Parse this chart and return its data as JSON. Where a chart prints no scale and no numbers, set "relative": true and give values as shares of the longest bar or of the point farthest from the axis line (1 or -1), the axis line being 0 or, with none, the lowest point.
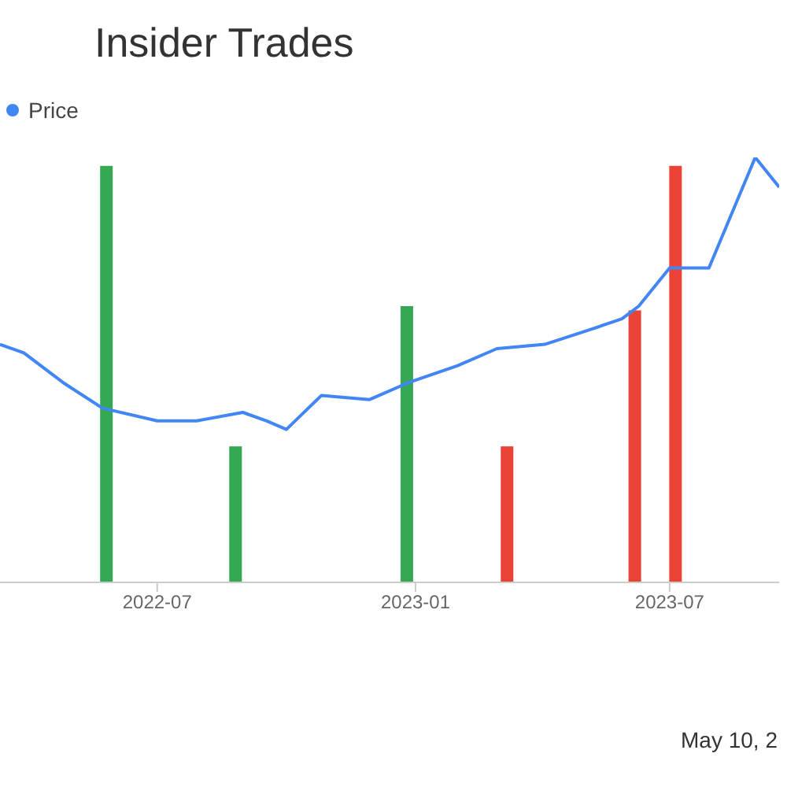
{
  "chart_data": {
    "type": "bar",
    "title": "Insider Trades",
    "relative": true,
    "legend": "top left",
    "xlim": [
      "2022-03-11",
      "2023-09-17"
    ],
    "xticks": [
      "2022-07",
      "2023-01",
      "2023-07"
    ],
    "series": [
      {
        "color": "#34a853",
        "x": [
          "2022-05-26",
          "2022-08-26",
          "2022-12-26"
        ],
        "values": [
          0.98,
          0.32,
          0.65
        ]
      },
      {
        "color": "#ea4335",
        "x": [
          "2023-03-07",
          "2023-06-06",
          "2023-07-05"
        ],
        "values": [
          0.32,
          0.64,
          0.98
        ]
      },
      {
        "type": "line",
        "name": "Price",
        "color": "#4285f4",
        "x": [
          "2022-03-11",
          "2022-03-28",
          "2022-04-25",
          "2022-05-23",
          "2022-07-01",
          "2022-07-29",
          "2022-08-31",
          "2022-09-17",
          "2022-10-01",
          "2022-10-26",
          "2022-11-29",
          "2022-12-27",
          "2023-01-31",
          "2023-02-28",
          "2023-04-03",
          "2023-05-01",
          "2023-05-28",
          "2023-06-09",
          "2023-07-01",
          "2023-07-29",
          "2023-08-31",
          "2023-09-17"
        ],
        "values": [
          0.56,
          0.54,
          0.47,
          0.41,
          0.38,
          0.38,
          0.4,
          0.38,
          0.36,
          0.44,
          0.43,
          0.47,
          0.51,
          0.55,
          0.56,
          0.59,
          0.62,
          0.65,
          0.74,
          0.74,
          1.0,
          0.93
        ]
      }
    ],
    "annotations": [
      "May 10, 2"
    ]
  }
}
